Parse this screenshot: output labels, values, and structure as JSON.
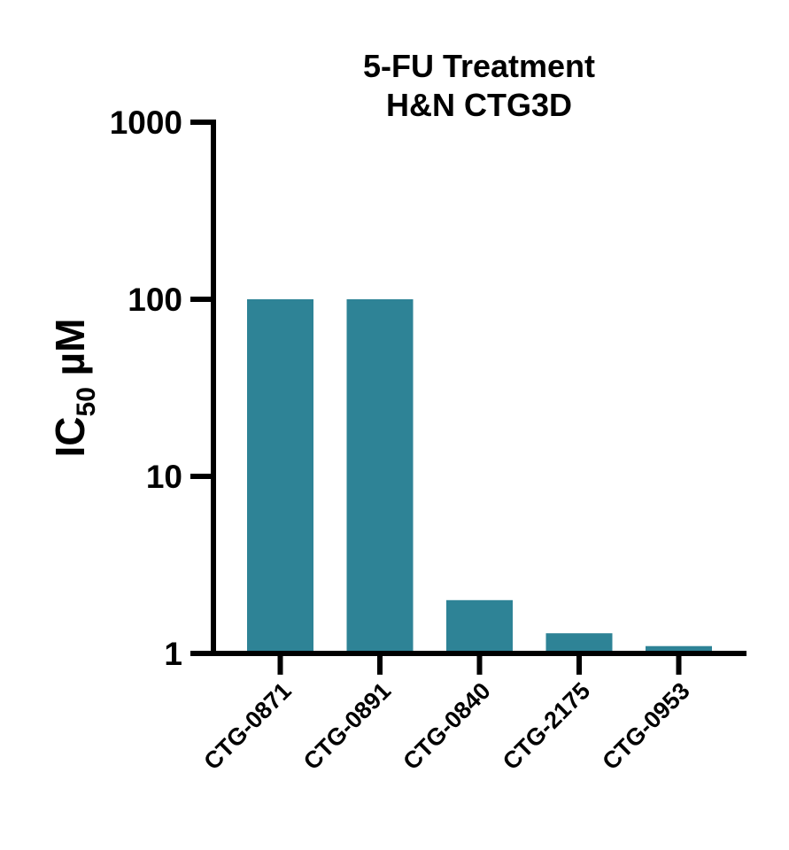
{
  "chart_data": {
    "type": "bar",
    "title": [
      "5-FU Treatment",
      "H&N CTG3D"
    ],
    "ylabel": {
      "main": "IC",
      "sub": "50",
      "unit": " µM"
    },
    "xlabel": "",
    "yscale": "log",
    "ylim": [
      1,
      1000
    ],
    "yticks": [
      1,
      10,
      100,
      1000
    ],
    "ytick_labels": [
      "1",
      "10",
      "100",
      "1000"
    ],
    "categories": [
      "CTG-0871",
      "CTG-0891",
      "CTG-0840",
      "CTG-2175",
      "CTG-0953"
    ],
    "values": [
      100,
      100,
      2.0,
      1.3,
      1.1
    ],
    "bar_color": "#2e8396",
    "grid": false
  }
}
